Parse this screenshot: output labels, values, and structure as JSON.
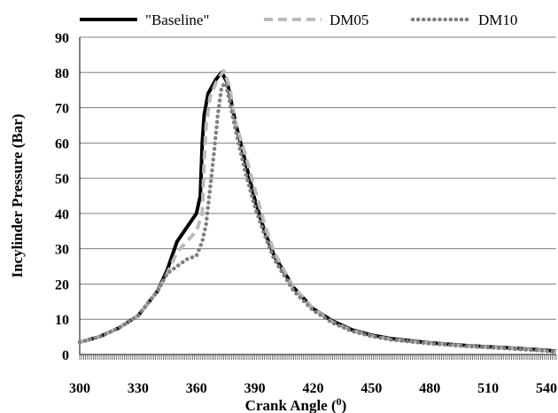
{
  "chart_data": {
    "type": "line",
    "xlabel": "Crank Angle (",
    "xlabel_sup": "0",
    "xlabel_end": ")",
    "ylabel": "Incylinder Pressure (Bar)",
    "xlim": [
      300,
      545
    ],
    "ylim": [
      0,
      90
    ],
    "x_ticks": [
      300,
      330,
      360,
      390,
      420,
      450,
      480,
      510,
      540
    ],
    "y_ticks": [
      0,
      10,
      20,
      30,
      40,
      50,
      60,
      70,
      80,
      90
    ],
    "grid": "horizontal",
    "legend_position": "top",
    "series": [
      {
        "name": "\"Baseline\"",
        "color": "#000000",
        "style": "solid",
        "points": [
          [
            300,
            3.5
          ],
          [
            310,
            5
          ],
          [
            320,
            7.5
          ],
          [
            330,
            11
          ],
          [
            340,
            18
          ],
          [
            345,
            24
          ],
          [
            350,
            32
          ],
          [
            355,
            36
          ],
          [
            360,
            40
          ],
          [
            362,
            45
          ],
          [
            363,
            60
          ],
          [
            364,
            68
          ],
          [
            366,
            74
          ],
          [
            370,
            78
          ],
          [
            373,
            80
          ],
          [
            376,
            77
          ],
          [
            380,
            66
          ],
          [
            385,
            55
          ],
          [
            390,
            44
          ],
          [
            395,
            35
          ],
          [
            400,
            28
          ],
          [
            410,
            19
          ],
          [
            420,
            13
          ],
          [
            430,
            9.5
          ],
          [
            440,
            7
          ],
          [
            450,
            5.5
          ],
          [
            460,
            4.5
          ],
          [
            480,
            3.3
          ],
          [
            500,
            2.5
          ],
          [
            520,
            1.9
          ],
          [
            540,
            1.2
          ],
          [
            545,
            0.9
          ]
        ]
      },
      {
        "name": "DM05",
        "color": "#bbbbbb",
        "style": "dash",
        "points": [
          [
            300,
            3.5
          ],
          [
            310,
            5
          ],
          [
            320,
            7.5
          ],
          [
            330,
            11
          ],
          [
            340,
            18
          ],
          [
            345,
            23
          ],
          [
            350,
            29
          ],
          [
            355,
            32
          ],
          [
            360,
            35
          ],
          [
            363,
            40
          ],
          [
            364,
            55
          ],
          [
            365,
            65
          ],
          [
            367,
            73
          ],
          [
            370,
            77
          ],
          [
            374,
            80.5
          ],
          [
            377,
            76
          ],
          [
            380,
            66
          ],
          [
            385,
            57
          ],
          [
            390,
            47
          ],
          [
            395,
            37
          ],
          [
            400,
            29
          ],
          [
            410,
            19
          ],
          [
            420,
            13
          ],
          [
            430,
            9.2
          ],
          [
            440,
            6.8
          ],
          [
            450,
            5.3
          ],
          [
            460,
            4.3
          ],
          [
            480,
            3.2
          ],
          [
            500,
            2.4
          ],
          [
            520,
            1.8
          ],
          [
            540,
            1.1
          ],
          [
            545,
            0.8
          ]
        ]
      },
      {
        "name": "DM10",
        "color": "#808080",
        "style": "dot",
        "points": [
          [
            300,
            3.5
          ],
          [
            310,
            5
          ],
          [
            320,
            7.5
          ],
          [
            330,
            11
          ],
          [
            340,
            18
          ],
          [
            345,
            23
          ],
          [
            350,
            25
          ],
          [
            355,
            27
          ],
          [
            360,
            28
          ],
          [
            363,
            32
          ],
          [
            365,
            37
          ],
          [
            367,
            47
          ],
          [
            369,
            57
          ],
          [
            371,
            68
          ],
          [
            373,
            76
          ],
          [
            375,
            77
          ],
          [
            377,
            72
          ],
          [
            380,
            64
          ],
          [
            385,
            52
          ],
          [
            390,
            42
          ],
          [
            395,
            34
          ],
          [
            400,
            27
          ],
          [
            410,
            18
          ],
          [
            420,
            12.5
          ],
          [
            430,
            9
          ],
          [
            440,
            6.6
          ],
          [
            450,
            5.2
          ],
          [
            460,
            4.2
          ],
          [
            480,
            3.1
          ],
          [
            500,
            2.3
          ],
          [
            520,
            1.7
          ],
          [
            540,
            1.0
          ],
          [
            545,
            0.7
          ]
        ]
      }
    ]
  }
}
